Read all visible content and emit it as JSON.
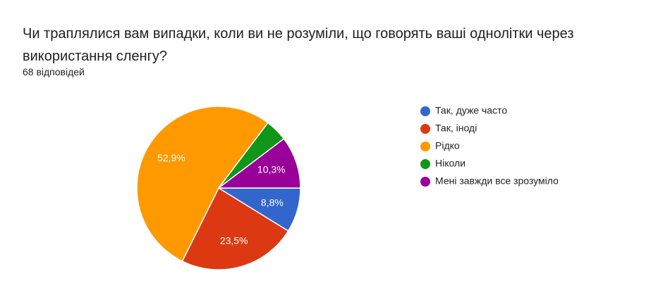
{
  "chart_data": {
    "type": "pie",
    "title": "Чи траплялися вам випадки, коли ви не розуміли, що говорять ваші однолітки через використання сленгу?",
    "subtitle": "68 відповідей",
    "categories": [
      "Так, дуже часто",
      "Так, іноді",
      "Рідко",
      "Ніколи",
      "Мені завжди все зрозуміло"
    ],
    "values": [
      8.8,
      23.5,
      52.9,
      4.4,
      10.3
    ],
    "value_labels": [
      "8,8%",
      "23,5%",
      "52,9%",
      null,
      "10,3%"
    ],
    "colors": [
      "#3366cc",
      "#dc3912",
      "#ff9900",
      "#109618",
      "#990099"
    ],
    "legend": "right"
  }
}
